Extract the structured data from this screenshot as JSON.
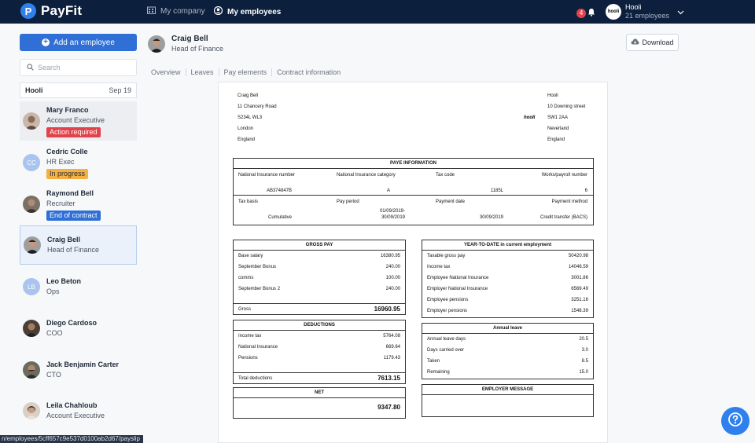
{
  "brand": {
    "name": "PayFit",
    "mark": "P"
  },
  "nav": {
    "company": "My company",
    "employees": "My employees"
  },
  "notifications": {
    "count": "4"
  },
  "company": {
    "name": "Hooli",
    "employees": "21 employees",
    "logo": "hooli"
  },
  "sidebar": {
    "add_label": "Add an employee",
    "search_placeholder": "Search",
    "period": {
      "company": "Hooli",
      "date": "Sep 19"
    },
    "employees": [
      {
        "name": "Mary Franco",
        "role": "Account Executive",
        "badge": "Action required"
      },
      {
        "name": "Cedric Colle",
        "role": "HR Exec",
        "badge": "In progress",
        "initials": "CC"
      },
      {
        "name": "Raymond Bell",
        "role": "Recruiter",
        "badge": "End of contract"
      },
      {
        "name": "Craig Bell",
        "role": "Head of Finance"
      },
      {
        "name": "Leo Beton",
        "role": "Ops",
        "initials": "LB"
      },
      {
        "name": "Diego Cardoso",
        "role": "COO"
      },
      {
        "name": "Jack Benjamin Carter",
        "role": "CTO"
      },
      {
        "name": "Leila Chahloub",
        "role": "Account Executive"
      }
    ]
  },
  "status_url": "n/employees/5cff657c9e537d0100ab2d67/payslip",
  "header": {
    "name": "Craig Bell",
    "role": "Head of Finance",
    "download": "Download"
  },
  "tabs": [
    "Overview",
    "Leaves",
    "Pay elements",
    "Contract information"
  ],
  "payslip": {
    "employee_address": [
      "Craig Bell",
      "11 Chancery Road",
      "S234L WL3",
      "London",
      "England"
    ],
    "employer_address": [
      "Hooli",
      "10 Downing street",
      "SW1 2AA",
      "Neverland",
      "England"
    ],
    "employer_logo": "hooli",
    "paye": {
      "title": "PAYE INFORMATION",
      "headers": [
        "National Insurance number",
        "National Insurance category",
        "Tax code",
        "Works/payroll number"
      ],
      "values": [
        "AB374847B",
        "A",
        "1185L",
        "6"
      ],
      "headers2": [
        "Tax basis",
        "Pay period",
        "Payment date",
        "Payment method"
      ],
      "values2": [
        "Cumulative",
        "01/09/2019- 30/09/2019",
        "30/09/2019",
        "Credit transfer (BACS)"
      ]
    },
    "gross": {
      "title": "GROSS PAY",
      "lines": [
        {
          "label": "Base salary",
          "value": "16380.95"
        },
        {
          "label": "September Bonus",
          "value": "240.00"
        },
        {
          "label": "comms",
          "value": "100.00"
        },
        {
          "label": "September Bonus 2",
          "value": "240.00"
        }
      ],
      "total_label": "Gross",
      "total": "16960.95"
    },
    "deductions": {
      "title": "DEDUCTIONS",
      "lines": [
        {
          "label": "Income tax",
          "value": "5764.08"
        },
        {
          "label": "National Insurance",
          "value": "669.64"
        },
        {
          "label": "Pensions",
          "value": "1179.43"
        }
      ],
      "total_label": "Total deductions",
      "total": "7613.15"
    },
    "net": {
      "title": "NET",
      "value": "9347.80"
    },
    "ytd": {
      "title": "YEAR-TO-DATE in current employment",
      "lines": [
        {
          "label": "Taxable gross pay",
          "value": "50420.98"
        },
        {
          "label": "Income tax",
          "value": "14046.59"
        },
        {
          "label": "Employee National Insurance",
          "value": "3001.86"
        },
        {
          "label": "Employer National Insurance",
          "value": "6569.49"
        },
        {
          "label": "Employee pensions",
          "value": "3251.16"
        },
        {
          "label": "Employer pensions",
          "value": "1548.39"
        }
      ]
    },
    "annual": {
      "title": "Annual leave",
      "lines": [
        {
          "label": "Annual leave days",
          "value": "20.5"
        },
        {
          "label": "Days carried over",
          "value": "3.0"
        },
        {
          "label": "Taken",
          "value": "8.5"
        },
        {
          "label": "Remaining",
          "value": "15.0"
        }
      ]
    },
    "employer_message": {
      "title": "EMPLOYER MESSAGE"
    }
  },
  "colors": {
    "topbar": "#0c1f3d",
    "accent": "#2f6fd6",
    "danger": "#e2434b",
    "warning": "#f5b041"
  }
}
